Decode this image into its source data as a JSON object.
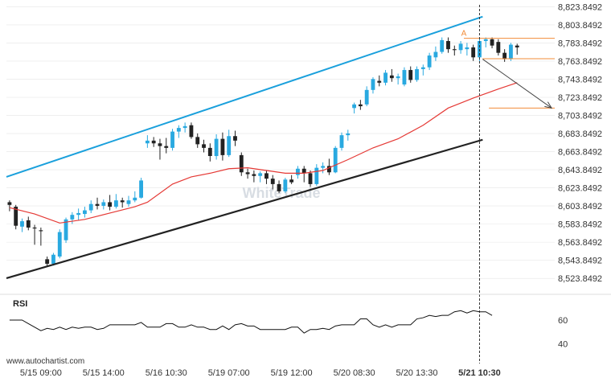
{
  "chart_data": {
    "type": "candlestick",
    "watermark": "WhiteTrade",
    "site": "www.autochartist.com",
    "y_axis": {
      "ylim": [
        8516.0,
        8826.0
      ],
      "ticks": [
        8823.8492,
        8803.8492,
        8783.8492,
        8763.8492,
        8743.8492,
        8723.8492,
        8703.8492,
        8683.8492,
        8663.8492,
        8643.8492,
        8623.8492,
        8603.8492,
        8583.8492,
        8563.8492,
        8543.8492,
        8523.8492
      ],
      "tick_labels": [
        "8,823.8492",
        "8,803.8492",
        "8,783.8492",
        "8,763.8492",
        "8,743.8492",
        "8,723.8492",
        "8,703.8492",
        "8,683.8492",
        "8,663.8492",
        "8,643.8492",
        "8,623.8492",
        "8,603.8492",
        "8,583.8492",
        "8,563.8492",
        "8,543.8492",
        "8,523.8492"
      ]
    },
    "x_axis": {
      "bar_range": [
        -0.5,
        87
      ],
      "ticks": [
        {
          "label": "5/15 09:00",
          "bar": 5
        },
        {
          "label": "5/15 14:00",
          "bar": 15
        },
        {
          "label": "5/16 10:30",
          "bar": 25
        },
        {
          "label": "5/19 07:00",
          "bar": 35
        },
        {
          "label": "5/19 12:00",
          "bar": 45
        },
        {
          "label": "5/20 08:30",
          "bar": 55
        },
        {
          "label": "5/20 13:30",
          "bar": 65
        },
        {
          "label": "5/21 10:30",
          "bar": 75,
          "highlight": true
        }
      ]
    },
    "candles": [
      {
        "o": 8608,
        "h": 8610,
        "l": 8598,
        "c": 8605
      },
      {
        "o": 8603,
        "h": 8605,
        "l": 8578,
        "c": 8582
      },
      {
        "o": 8581,
        "h": 8590,
        "l": 8575,
        "c": 8587
      },
      {
        "o": 8588,
        "h": 8592,
        "l": 8577,
        "c": 8580
      },
      {
        "o": 8580,
        "h": 8583,
        "l": 8561,
        "c": 8579
      },
      {
        "o": 8577,
        "h": 8580,
        "l": 8560,
        "c": 8576
      },
      {
        "o": 8545,
        "h": 8548,
        "l": 8537,
        "c": 8540
      },
      {
        "o": 8540,
        "h": 8552,
        "l": 8538,
        "c": 8550
      },
      {
        "o": 8548,
        "h": 8578,
        "l": 8546,
        "c": 8575
      },
      {
        "o": 8566,
        "h": 8591,
        "l": 8563,
        "c": 8589
      },
      {
        "o": 8589,
        "h": 8597,
        "l": 8584,
        "c": 8594
      },
      {
        "o": 8594,
        "h": 8601,
        "l": 8588,
        "c": 8596
      },
      {
        "o": 8595,
        "h": 8603,
        "l": 8591,
        "c": 8599
      },
      {
        "o": 8599,
        "h": 8610,
        "l": 8596,
        "c": 8606
      },
      {
        "o": 8606,
        "h": 8613,
        "l": 8600,
        "c": 8604
      },
      {
        "o": 8604,
        "h": 8611,
        "l": 8600,
        "c": 8608
      },
      {
        "o": 8608,
        "h": 8616,
        "l": 8599,
        "c": 8603
      },
      {
        "o": 8603,
        "h": 8617,
        "l": 8601,
        "c": 8610
      },
      {
        "o": 8610,
        "h": 8613,
        "l": 8602,
        "c": 8608
      },
      {
        "o": 8606,
        "h": 8615,
        "l": 8603,
        "c": 8610
      },
      {
        "o": 8610,
        "h": 8620,
        "l": 8608,
        "c": 8613
      },
      {
        "o": 8613,
        "h": 8635,
        "l": 8612,
        "c": 8632
      },
      {
        "o": 8673,
        "h": 8682,
        "l": 8668,
        "c": 8676
      },
      {
        "o": 8676,
        "h": 8680,
        "l": 8669,
        "c": 8673
      },
      {
        "o": 8673,
        "h": 8678,
        "l": 8655,
        "c": 8670
      },
      {
        "o": 8670,
        "h": 8679,
        "l": 8662,
        "c": 8668
      },
      {
        "o": 8668,
        "h": 8689,
        "l": 8665,
        "c": 8686
      },
      {
        "o": 8686,
        "h": 8693,
        "l": 8679,
        "c": 8690
      },
      {
        "o": 8690,
        "h": 8696,
        "l": 8685,
        "c": 8692
      },
      {
        "o": 8693,
        "h": 8696,
        "l": 8678,
        "c": 8680
      },
      {
        "o": 8680,
        "h": 8684,
        "l": 8668,
        "c": 8672
      },
      {
        "o": 8672,
        "h": 8677,
        "l": 8663,
        "c": 8668
      },
      {
        "o": 8668,
        "h": 8673,
        "l": 8653,
        "c": 8659
      },
      {
        "o": 8659,
        "h": 8683,
        "l": 8655,
        "c": 8678
      },
      {
        "o": 8678,
        "h": 8685,
        "l": 8654,
        "c": 8660
      },
      {
        "o": 8660,
        "h": 8688,
        "l": 8658,
        "c": 8681
      },
      {
        "o": 8681,
        "h": 8687,
        "l": 8670,
        "c": 8676
      },
      {
        "o": 8660,
        "h": 8663,
        "l": 8637,
        "c": 8641
      },
      {
        "o": 8641,
        "h": 8645,
        "l": 8634,
        "c": 8639
      },
      {
        "o": 8639,
        "h": 8643,
        "l": 8630,
        "c": 8637
      },
      {
        "o": 8637,
        "h": 8642,
        "l": 8630,
        "c": 8640
      },
      {
        "o": 8640,
        "h": 8643,
        "l": 8628,
        "c": 8634
      },
      {
        "o": 8634,
        "h": 8638,
        "l": 8622,
        "c": 8628
      },
      {
        "o": 8628,
        "h": 8632,
        "l": 8618,
        "c": 8620
      },
      {
        "o": 8620,
        "h": 8635,
        "l": 8618,
        "c": 8633
      },
      {
        "o": 8633,
        "h": 8638,
        "l": 8628,
        "c": 8630
      },
      {
        "o": 8638,
        "h": 8648,
        "l": 8634,
        "c": 8645
      },
      {
        "o": 8645,
        "h": 8648,
        "l": 8630,
        "c": 8640
      },
      {
        "o": 8640,
        "h": 8643,
        "l": 8625,
        "c": 8628
      },
      {
        "o": 8628,
        "h": 8650,
        "l": 8626,
        "c": 8646
      },
      {
        "o": 8646,
        "h": 8652,
        "l": 8640,
        "c": 8648
      },
      {
        "o": 8648,
        "h": 8656,
        "l": 8638,
        "c": 8641
      },
      {
        "o": 8641,
        "h": 8670,
        "l": 8640,
        "c": 8668
      },
      {
        "o": 8668,
        "h": 8685,
        "l": 8665,
        "c": 8682
      },
      {
        "o": 8682,
        "h": 8688,
        "l": 8676,
        "c": 8684
      },
      {
        "o": 8712,
        "h": 8718,
        "l": 8706,
        "c": 8716
      },
      {
        "o": 8716,
        "h": 8721,
        "l": 8710,
        "c": 8714
      },
      {
        "o": 8716,
        "h": 8736,
        "l": 8714,
        "c": 8732
      },
      {
        "o": 8732,
        "h": 8746,
        "l": 8728,
        "c": 8744
      },
      {
        "o": 8742,
        "h": 8748,
        "l": 8736,
        "c": 8740
      },
      {
        "o": 8740,
        "h": 8754,
        "l": 8737,
        "c": 8751
      },
      {
        "o": 8748,
        "h": 8755,
        "l": 8741,
        "c": 8745
      },
      {
        "o": 8745,
        "h": 8750,
        "l": 8738,
        "c": 8747
      },
      {
        "o": 8738,
        "h": 8757,
        "l": 8736,
        "c": 8754
      },
      {
        "o": 8754,
        "h": 8758,
        "l": 8740,
        "c": 8743
      },
      {
        "o": 8743,
        "h": 8758,
        "l": 8741,
        "c": 8755
      },
      {
        "o": 8755,
        "h": 8760,
        "l": 8748,
        "c": 8757
      },
      {
        "o": 8757,
        "h": 8773,
        "l": 8754,
        "c": 8770
      },
      {
        "o": 8768,
        "h": 8780,
        "l": 8764,
        "c": 8774
      },
      {
        "o": 8774,
        "h": 8790,
        "l": 8772,
        "c": 8787
      },
      {
        "o": 8786,
        "h": 8790,
        "l": 8773,
        "c": 8777
      },
      {
        "o": 8777,
        "h": 8781,
        "l": 8770,
        "c": 8776
      },
      {
        "o": 8776,
        "h": 8786,
        "l": 8772,
        "c": 8783
      },
      {
        "o": 8777,
        "h": 8784,
        "l": 8770,
        "c": 8779
      },
      {
        "o": 8779,
        "h": 8782,
        "l": 8764,
        "c": 8768
      },
      {
        "o": 8768,
        "h": 8790,
        "l": 8764,
        "c": 8786
      },
      {
        "o": 8786,
        "h": 8790,
        "l": 8779,
        "c": 8788
      },
      {
        "o": 8788,
        "h": 8790,
        "l": 8778,
        "c": 8781
      },
      {
        "o": 8785,
        "h": 8788,
        "l": 8770,
        "c": 8773
      },
      {
        "o": 8773,
        "h": 8777,
        "l": 8763,
        "c": 8766
      },
      {
        "o": 8766,
        "h": 8784,
        "l": 8764,
        "c": 8782
      },
      {
        "o": 8781,
        "h": 8783,
        "l": 8771,
        "c": 8779
      }
    ],
    "moving_average": {
      "color": "#e53935",
      "points": [
        [
          0,
          8602
        ],
        [
          4,
          8595
        ],
        [
          8,
          8585
        ],
        [
          12,
          8589
        ],
        [
          16,
          8596
        ],
        [
          20,
          8603
        ],
        [
          22,
          8608
        ],
        [
          26,
          8628
        ],
        [
          29,
          8636
        ],
        [
          32,
          8640
        ],
        [
          35,
          8645
        ],
        [
          38,
          8646
        ],
        [
          41,
          8643
        ],
        [
          44,
          8640
        ],
        [
          47,
          8640
        ],
        [
          50,
          8643
        ],
        [
          54,
          8655
        ],
        [
          58,
          8668
        ],
        [
          62,
          8678
        ],
        [
          66,
          8693
        ],
        [
          70,
          8712
        ],
        [
          74,
          8723
        ],
        [
          78,
          8733
        ],
        [
          81,
          8740
        ]
      ]
    },
    "channel": {
      "upper": {
        "color": "#1aa0dc",
        "from": [
          -0.5,
          8636
        ],
        "to": [
          75.5,
          8813
        ]
      },
      "lower": {
        "color": "#222222",
        "from": [
          -0.5,
          8524
        ],
        "to": [
          75.5,
          8677
        ]
      }
    },
    "levels": [
      {
        "value": 8789,
        "from_bar": 72.5,
        "color": "#f28c38"
      },
      {
        "value": 8766.5,
        "from_bar": 75.5,
        "color": "#f28c38"
      },
      {
        "value": 8712,
        "from_bar": 76.5,
        "color": "#f28c38"
      }
    ],
    "projection": {
      "from": [
        75.5,
        8766
      ],
      "to": [
        86.5,
        8712
      ],
      "color": "#444444"
    },
    "marker": {
      "label": "A",
      "bar": 72.5,
      "value": 8792,
      "color": "#f28c38"
    },
    "current_bar": 75,
    "colors": {
      "bull": "#29a9e0",
      "bear": "#222222",
      "grid": "#e6e6e6"
    },
    "rsi": {
      "label": "RSI",
      "ylim": [
        30,
        75
      ],
      "ticks": [
        60,
        40
      ],
      "values": [
        60,
        60,
        60,
        57,
        54,
        51,
        53,
        52,
        54,
        52,
        54,
        53,
        54,
        54,
        52,
        53,
        56,
        56,
        56,
        56,
        56,
        58,
        54,
        54,
        54,
        57,
        57,
        54,
        54,
        56,
        54,
        54,
        52,
        52,
        55,
        52,
        56,
        57,
        55,
        55,
        52,
        52,
        52,
        52,
        52,
        54,
        54,
        49,
        52,
        52,
        53,
        52,
        55,
        56,
        56,
        56,
        61,
        61,
        56,
        54,
        56,
        54,
        56,
        56,
        56,
        61,
        62,
        64,
        63,
        64,
        64,
        67,
        68,
        66,
        68,
        67,
        67,
        64
      ]
    }
  }
}
